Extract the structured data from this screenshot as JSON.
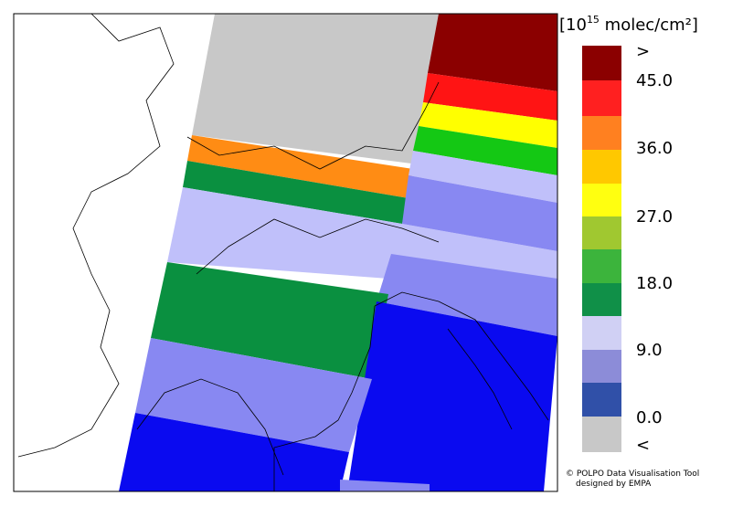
{
  "legend": {
    "unit": {
      "prefix": "[10",
      "exponent": "15",
      "suffix": " molec/cm²]"
    },
    "labels": [
      ">",
      "45.0",
      "36.0",
      "27.0",
      "18.0",
      "9.0",
      "0.0",
      "<"
    ]
  },
  "credit": {
    "line1": "© POLPO Data Visualisation Tool",
    "line2": "designed by EMPA"
  }
}
